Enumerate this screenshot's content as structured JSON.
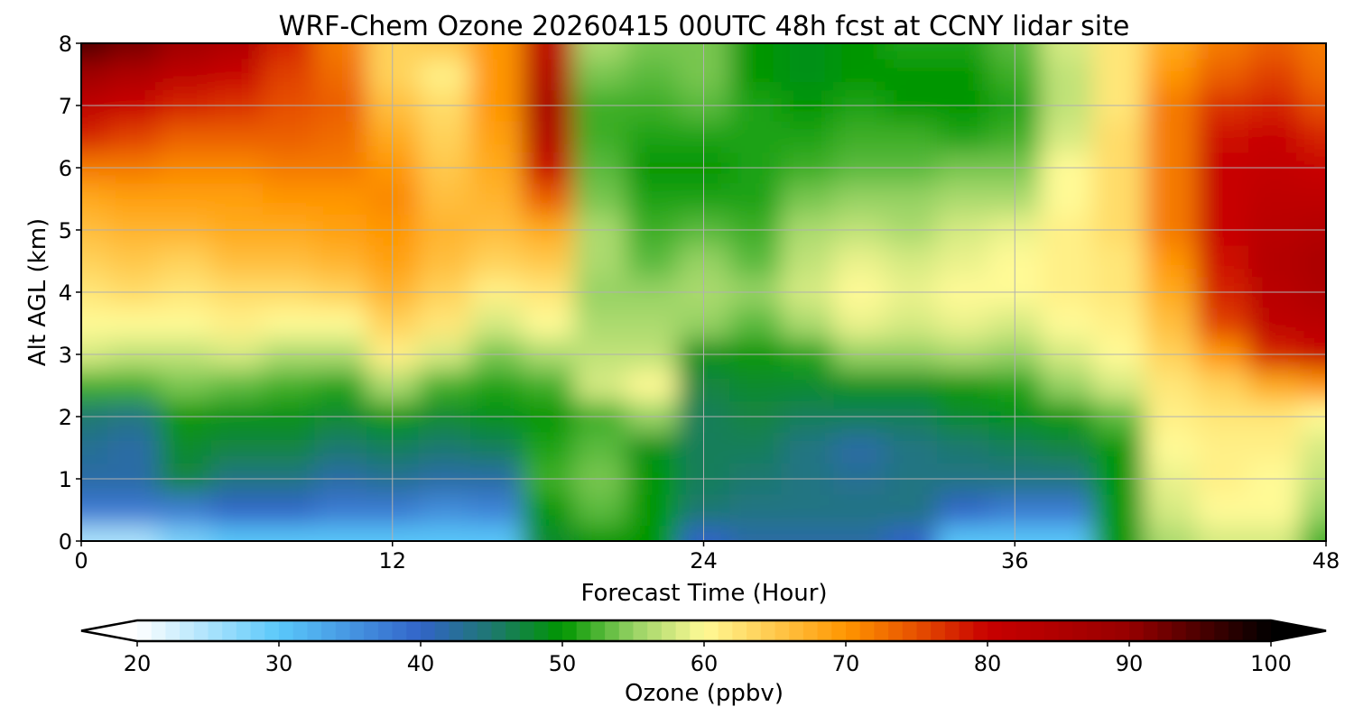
{
  "chart_data": {
    "type": "heatmap",
    "title": "WRF-Chem Ozone  20260415 00UTC 48h fcst at CCNY lidar site",
    "xlabel": "Forecast Time (Hour)",
    "ylabel": "Alt AGL (km)",
    "xlim": [
      0,
      48
    ],
    "ylim": [
      0,
      8
    ],
    "xticks": [
      0,
      12,
      24,
      36,
      48
    ],
    "yticks": [
      0,
      1,
      2,
      3,
      4,
      5,
      6,
      7,
      8
    ],
    "grid": true,
    "x": [
      0,
      2,
      4,
      6,
      8,
      10,
      12,
      14,
      16,
      18,
      20,
      22,
      24,
      26,
      28,
      30,
      32,
      34,
      36,
      38,
      40,
      42,
      44,
      46,
      48
    ],
    "y": [
      0,
      0.5,
      1,
      1.5,
      2,
      2.5,
      3,
      3.5,
      4,
      4.5,
      5,
      5.5,
      6,
      6.5,
      7,
      7.5,
      8
    ],
    "z_by_time": [
      [
        25,
        38,
        42,
        43,
        45,
        52,
        58,
        60,
        62,
        64,
        66,
        68,
        72,
        78,
        82,
        88,
        95
      ],
      [
        25,
        38,
        42,
        42,
        44,
        52,
        57,
        60,
        63,
        65,
        67,
        69,
        72,
        76,
        80,
        85,
        92
      ],
      [
        28,
        38,
        47,
        48,
        50,
        54,
        57,
        60,
        62,
        64,
        67,
        69,
        71,
        74,
        78,
        82,
        88
      ],
      [
        30,
        40,
        44,
        47,
        49,
        53,
        58,
        61,
        63,
        66,
        68,
        69,
        71,
        74,
        77,
        80,
        85
      ],
      [
        30,
        40,
        44,
        47,
        49,
        52,
        56,
        60,
        63,
        66,
        68,
        70,
        72,
        74,
        75,
        76,
        78
      ],
      [
        30,
        38,
        42,
        45,
        48,
        51,
        56,
        60,
        64,
        67,
        69,
        70,
        72,
        73,
        74,
        73,
        72
      ],
      [
        30,
        38,
        43,
        46,
        50,
        56,
        61,
        64,
        67,
        69,
        70,
        71,
        70,
        68,
        66,
        64,
        64
      ],
      [
        30,
        36,
        42,
        45,
        48,
        52,
        58,
        62,
        64,
        66,
        67,
        66,
        65,
        64,
        63,
        61,
        65
      ],
      [
        30,
        37,
        42,
        46,
        49,
        51,
        54,
        58,
        61,
        64,
        66,
        67,
        68,
        69,
        70,
        70,
        70
      ],
      [
        48,
        50,
        52,
        51,
        50,
        52,
        56,
        60,
        62,
        65,
        68,
        74,
        80,
        84,
        86,
        84,
        82
      ],
      [
        50,
        53,
        54,
        53,
        52,
        58,
        57,
        56,
        55,
        56,
        56,
        54,
        53,
        52,
        52,
        54,
        56
      ],
      [
        50,
        50,
        50,
        49,
        55,
        60,
        57,
        56,
        55,
        53,
        52,
        51,
        50,
        51,
        52,
        53,
        54
      ],
      [
        40,
        45,
        46,
        46,
        46,
        47,
        49,
        55,
        56,
        55,
        53,
        51,
        50,
        51,
        53,
        54,
        54
      ],
      [
        42,
        44,
        45,
        46,
        47,
        48,
        50,
        53,
        55,
        53,
        52,
        51,
        51,
        51,
        51,
        50,
        50
      ],
      [
        42,
        44,
        44,
        44,
        46,
        48,
        51,
        56,
        58,
        57,
        56,
        54,
        52,
        51,
        50,
        49,
        49
      ],
      [
        42,
        44,
        43,
        42,
        46,
        49,
        55,
        59,
        60,
        59,
        57,
        55,
        53,
        52,
        51,
        50,
        50
      ],
      [
        40,
        44,
        44,
        44,
        46,
        49,
        55,
        58,
        59,
        58,
        56,
        55,
        53,
        52,
        50,
        50,
        51
      ],
      [
        30,
        40,
        44,
        45,
        48,
        50,
        56,
        59,
        60,
        59,
        58,
        56,
        54,
        51,
        50,
        50,
        51
      ],
      [
        30,
        38,
        44,
        46,
        49,
        51,
        55,
        58,
        60,
        60,
        59,
        56,
        54,
        52,
        51,
        52,
        53
      ],
      [
        30,
        38,
        44,
        47,
        50,
        55,
        58,
        60,
        61,
        61,
        61,
        60,
        60,
        58,
        57,
        57,
        58
      ],
      [
        50,
        50,
        50,
        50,
        53,
        58,
        60,
        61,
        62,
        62,
        63,
        63,
        63,
        63,
        62,
        62,
        62
      ],
      [
        56,
        58,
        59,
        60,
        61,
        62,
        64,
        66,
        68,
        70,
        72,
        72,
        72,
        72,
        72,
        70,
        68
      ],
      [
        58,
        60,
        61,
        61,
        62,
        64,
        70,
        76,
        78,
        79,
        80,
        80,
        80,
        79,
        77,
        74,
        72
      ],
      [
        58,
        60,
        60,
        61,
        62,
        68,
        78,
        82,
        83,
        84,
        83,
        82,
        81,
        80,
        78,
        76,
        74
      ],
      [
        52,
        55,
        57,
        58,
        60,
        70,
        80,
        83,
        85,
        86,
        84,
        82,
        80,
        78,
        75,
        73,
        72
      ]
    ],
    "colorbar": {
      "label": "Ozone  (ppbv)",
      "min": 20,
      "max": 100,
      "step": 1,
      "ticks": [
        20,
        30,
        40,
        50,
        60,
        70,
        80,
        90,
        100
      ],
      "extend": "both",
      "stops": [
        [
          20,
          "#ffffff"
        ],
        [
          30,
          "#5ac8fa"
        ],
        [
          40,
          "#3264c8"
        ],
        [
          45,
          "#1e7870"
        ],
        [
          50,
          "#009600"
        ],
        [
          55,
          "#96d264"
        ],
        [
          60,
          "#fffa96"
        ],
        [
          70,
          "#ff9600"
        ],
        [
          75,
          "#e65000"
        ],
        [
          80,
          "#c80000"
        ],
        [
          90,
          "#960000"
        ],
        [
          100,
          "#000000"
        ]
      ]
    }
  }
}
